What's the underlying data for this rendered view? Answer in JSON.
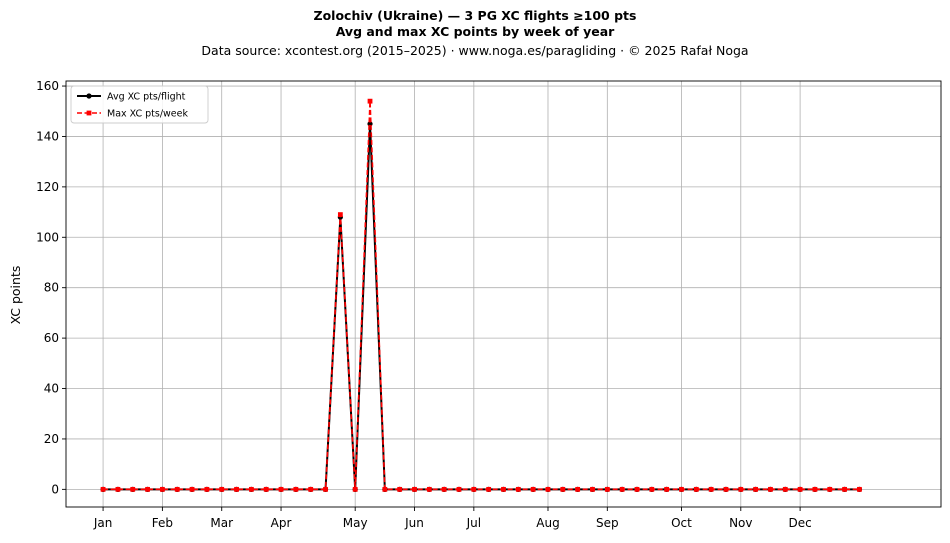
{
  "chart_data": {
    "type": "line",
    "title_line1": "Zolochiv (Ukraine)  —  3 PG XC flights ≥100 pts",
    "title_line2": "Avg and max XC points by week of year",
    "subtitle": "Data source: xcontest.org (2015–2025)  ·  www.noga.es/paragliding  ·  © 2025 Rafał Noga",
    "xlabel": "",
    "ylabel": "XC points",
    "ylim": [
      -7,
      162
    ],
    "yticks": [
      0,
      20,
      40,
      60,
      80,
      100,
      120,
      140,
      160
    ],
    "xlim": [
      -2.5,
      56.5
    ],
    "xticks": [
      {
        "label": "Jan",
        "week": 0
      },
      {
        "label": "Feb",
        "week": 4
      },
      {
        "label": "Mar",
        "week": 8
      },
      {
        "label": "Apr",
        "week": 12
      },
      {
        "label": "May",
        "week": 17
      },
      {
        "label": "Jun",
        "week": 21
      },
      {
        "label": "Jul",
        "week": 25
      },
      {
        "label": "Aug",
        "week": 30
      },
      {
        "label": "Sep",
        "week": 34
      },
      {
        "label": "Oct",
        "week": 39
      },
      {
        "label": "Nov",
        "week": 43
      },
      {
        "label": "Dec",
        "week": 47
      }
    ],
    "x": [
      0,
      1,
      2,
      3,
      4,
      5,
      6,
      7,
      8,
      9,
      10,
      11,
      12,
      13,
      14,
      15,
      16,
      17,
      18,
      19,
      20,
      21,
      22,
      23,
      24,
      25,
      26,
      27,
      28,
      29,
      30,
      31,
      32,
      33,
      34,
      35,
      36,
      37,
      38,
      39,
      40,
      41,
      42,
      43,
      44,
      45,
      46,
      47,
      48,
      49,
      50,
      51
    ],
    "series": [
      {
        "name": "Avg XC pts/flight",
        "color": "#000000",
        "style": "solid",
        "marker": "circle",
        "values": [
          0,
          0,
          0,
          0,
          0,
          0,
          0,
          0,
          0,
          0,
          0,
          0,
          0,
          0,
          0,
          0,
          108,
          0,
          145,
          0,
          0,
          0,
          0,
          0,
          0,
          0,
          0,
          0,
          0,
          0,
          0,
          0,
          0,
          0,
          0,
          0,
          0,
          0,
          0,
          0,
          0,
          0,
          0,
          0,
          0,
          0,
          0,
          0,
          0,
          0,
          0,
          0
        ]
      },
      {
        "name": "Max XC pts/week",
        "color": "#ff0000",
        "style": "dashed",
        "marker": "square",
        "values": [
          0,
          0,
          0,
          0,
          0,
          0,
          0,
          0,
          0,
          0,
          0,
          0,
          0,
          0,
          0,
          0,
          109,
          0,
          154,
          0,
          0,
          0,
          0,
          0,
          0,
          0,
          0,
          0,
          0,
          0,
          0,
          0,
          0,
          0,
          0,
          0,
          0,
          0,
          0,
          0,
          0,
          0,
          0,
          0,
          0,
          0,
          0,
          0,
          0,
          0,
          0,
          0
        ]
      }
    ],
    "grid": true,
    "legend_position": "top-left"
  }
}
